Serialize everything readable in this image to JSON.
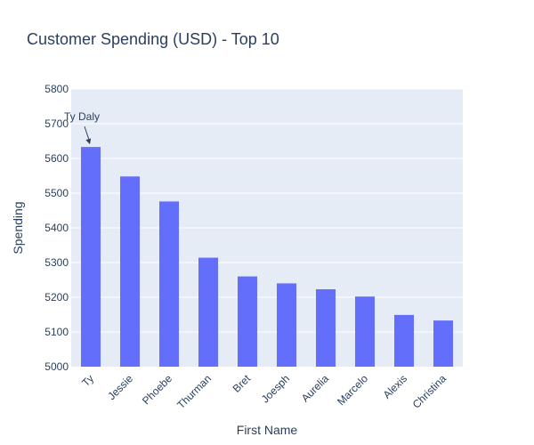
{
  "chart_data": {
    "type": "bar",
    "title": "Customer Spending (USD) - Top 10",
    "xlabel": "First Name",
    "ylabel": "Spending",
    "categories": [
      "Ty",
      "Jessie",
      "Phoebe",
      "Thurman",
      "Bret",
      "Joesph",
      "Aurelia",
      "Marcelo",
      "Alexis",
      "Christina"
    ],
    "values": [
      5633,
      5548,
      5476,
      5314,
      5260,
      5240,
      5223,
      5202,
      5149,
      5133
    ],
    "ylim": [
      5000,
      5800
    ],
    "yticks": [
      "5000",
      "5100",
      "5200",
      "5300",
      "5400",
      "5500",
      "5600",
      "5700",
      "5800"
    ],
    "grid": true,
    "annotation": {
      "text": "Ty Daly",
      "category": "Ty"
    },
    "colors": {
      "bar": "#636efa",
      "plot_bg": "#e5ecf6",
      "grid": "#ffffff",
      "text": "#2a3f5f"
    }
  }
}
